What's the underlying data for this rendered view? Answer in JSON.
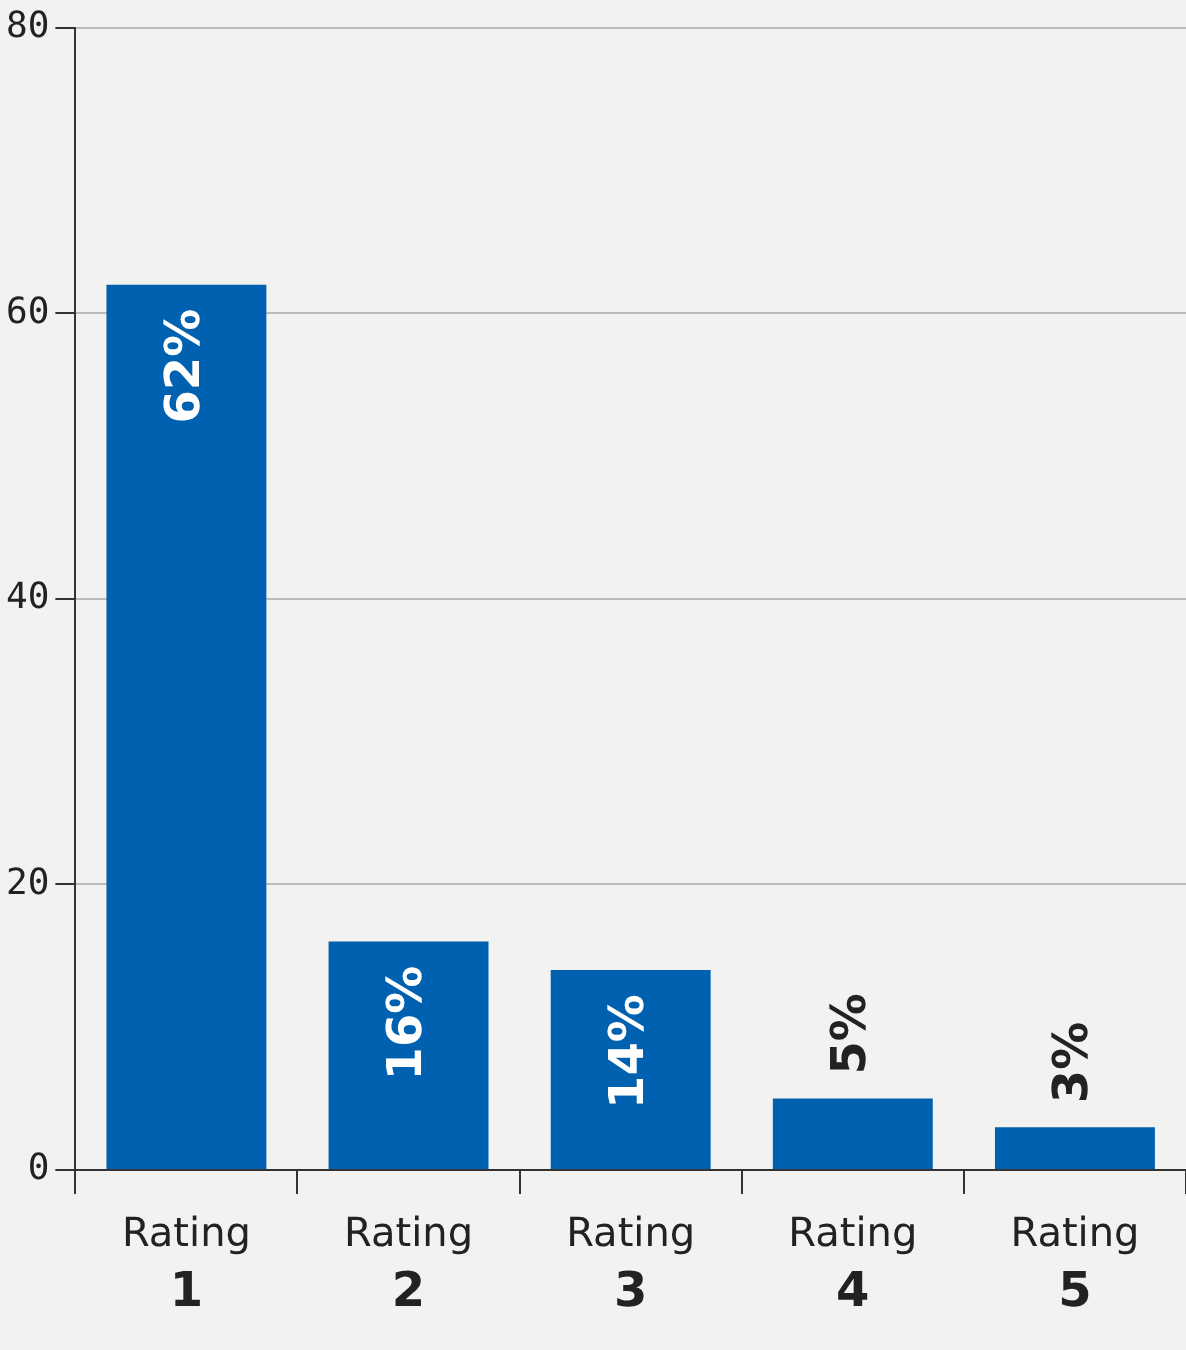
{
  "chart_data": {
    "type": "bar",
    "categories": [
      "Rating 1",
      "Rating 2",
      "Rating 3",
      "Rating 4",
      "Rating 5"
    ],
    "values": [
      62,
      16,
      14,
      5,
      3
    ],
    "value_labels": [
      "62%",
      "16%",
      "14%",
      "5%",
      "3%"
    ],
    "color": "#0061b0",
    "ylim": [
      0,
      80
    ],
    "yticks": [
      0,
      20,
      40,
      60,
      80
    ],
    "grid": "y",
    "legend": false
  }
}
